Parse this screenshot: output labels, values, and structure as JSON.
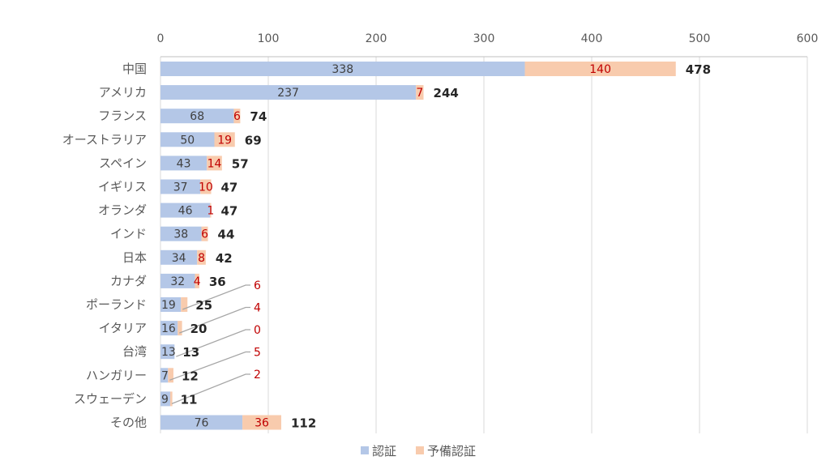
{
  "chart_data": {
    "type": "bar",
    "orientation": "horizontal",
    "stacked": true,
    "categories": [
      "中国",
      "アメリカ",
      "フランス",
      "オーストラリア",
      "スペイン",
      "イギリス",
      "オランダ",
      "インド",
      "日本",
      "カナダ",
      "ポーランド",
      "イタリア",
      "台湾",
      "ハンガリー",
      "スウェーデン",
      "その他"
    ],
    "series": [
      {
        "name": "認証",
        "color": "#b4c7e7",
        "values": [
          338,
          237,
          68,
          50,
          43,
          37,
          46,
          38,
          34,
          32,
          19,
          16,
          13,
          7,
          9,
          76
        ]
      },
      {
        "name": "予備認証",
        "color": "#f8cbad",
        "values": [
          140,
          7,
          6,
          19,
          14,
          10,
          1,
          6,
          8,
          4,
          6,
          4,
          0,
          5,
          2,
          36
        ]
      }
    ],
    "totals": [
      478,
      244,
      74,
      69,
      57,
      47,
      47,
      44,
      42,
      36,
      25,
      20,
      13,
      12,
      11,
      112
    ],
    "xlim": [
      0,
      600
    ],
    "xticks": [
      0,
      100,
      200,
      300,
      400,
      500,
      600
    ],
    "axis_position": "top",
    "grid": true,
    "legend_position": "bottom",
    "label_color_series1": "#404040",
    "label_color_series2": "#c00000"
  }
}
